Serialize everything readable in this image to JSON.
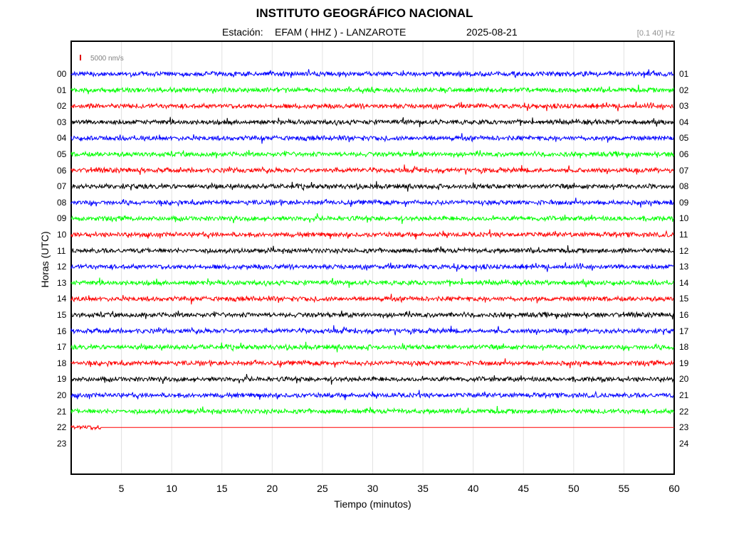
{
  "chart_data": {
    "type": "line",
    "title": "INSTITUTO GEOGRÁFICO NACIONAL",
    "station_label": "Estación:",
    "station": "EFAM ( HHZ ) - LANZAROTE",
    "date": "2025-08-21",
    "filter": "[0.1 40] Hz",
    "scale_label": "5000 nm/s",
    "xlabel": "Tiempo (minutos)",
    "ylabel": "Horas (UTC)",
    "xlim": [
      0,
      60
    ],
    "x_ticks": [
      "5",
      "10",
      "15",
      "20",
      "25",
      "30",
      "35",
      "40",
      "45",
      "50",
      "55",
      "60"
    ],
    "hours_left": [
      "00",
      "01",
      "02",
      "03",
      "04",
      "05",
      "06",
      "07",
      "08",
      "09",
      "10",
      "11",
      "12",
      "13",
      "14",
      "15",
      "16",
      "17",
      "18",
      "19",
      "20",
      "21",
      "22",
      "23"
    ],
    "hours_right": [
      "01",
      "02",
      "03",
      "04",
      "05",
      "06",
      "07",
      "08",
      "09",
      "10",
      "11",
      "12",
      "13",
      "14",
      "15",
      "16",
      "17",
      "18",
      "19",
      "20",
      "21",
      "22",
      "23",
      "24"
    ],
    "grid": true,
    "series": [
      {
        "hour": "00",
        "color": "#0000ff",
        "end_minute": 60
      },
      {
        "hour": "01",
        "color": "#00ff00",
        "end_minute": 60
      },
      {
        "hour": "02",
        "color": "#ff0000",
        "end_minute": 60
      },
      {
        "hour": "03",
        "color": "#000000",
        "end_minute": 60
      },
      {
        "hour": "04",
        "color": "#0000ff",
        "end_minute": 60
      },
      {
        "hour": "05",
        "color": "#00ff00",
        "end_minute": 60
      },
      {
        "hour": "06",
        "color": "#ff0000",
        "end_minute": 60
      },
      {
        "hour": "07",
        "color": "#000000",
        "end_minute": 60
      },
      {
        "hour": "08",
        "color": "#0000ff",
        "end_minute": 60
      },
      {
        "hour": "09",
        "color": "#00ff00",
        "end_minute": 60
      },
      {
        "hour": "10",
        "color": "#ff0000",
        "end_minute": 60
      },
      {
        "hour": "11",
        "color": "#000000",
        "end_minute": 60
      },
      {
        "hour": "12",
        "color": "#0000ff",
        "end_minute": 60
      },
      {
        "hour": "13",
        "color": "#00ff00",
        "end_minute": 60
      },
      {
        "hour": "14",
        "color": "#ff0000",
        "end_minute": 60
      },
      {
        "hour": "15",
        "color": "#000000",
        "end_minute": 60
      },
      {
        "hour": "16",
        "color": "#0000ff",
        "end_minute": 60
      },
      {
        "hour": "17",
        "color": "#00ff00",
        "end_minute": 60
      },
      {
        "hour": "18",
        "color": "#ff0000",
        "end_minute": 60
      },
      {
        "hour": "19",
        "color": "#000000",
        "end_minute": 60
      },
      {
        "hour": "20",
        "color": "#0000ff",
        "end_minute": 60
      },
      {
        "hour": "21",
        "color": "#00ff00",
        "end_minute": 60
      },
      {
        "hour": "22",
        "color": "#ff0000",
        "end_minute": 3,
        "flat_until_minute": 60
      }
    ]
  }
}
